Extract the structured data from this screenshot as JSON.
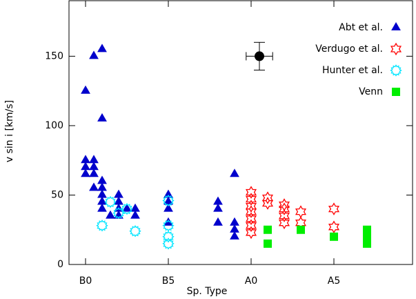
{
  "chart_data": {
    "type": "scatter",
    "xlabel": "Sp. Type",
    "ylabel": "v sin i [km/s]",
    "xlim": [
      -1,
      19.75
    ],
    "ylim": [
      0,
      190
    ],
    "xticks": [
      {
        "value": 0,
        "label": "B0"
      },
      {
        "value": 5,
        "label": "B5"
      },
      {
        "value": 10,
        "label": "A0"
      },
      {
        "value": 15,
        "label": "A5"
      }
    ],
    "yticks": [
      0,
      50,
      100,
      150
    ],
    "legend": "upper right",
    "series": [
      {
        "name": "Abt et al.",
        "color": "#0000cc",
        "marker": "triangle",
        "x": [
          0,
          0,
          0,
          0,
          0.5,
          0.5,
          0.5,
          0.5,
          0.5,
          1,
          1,
          1,
          1,
          1,
          1,
          1,
          1.5,
          2,
          2,
          2,
          2,
          2.5,
          3,
          3,
          5,
          5,
          5,
          5,
          8,
          8,
          8,
          9,
          9,
          9,
          9
        ],
        "values": [
          125,
          75,
          70,
          65,
          150,
          75,
          70,
          65,
          55,
          155,
          105,
          60,
          55,
          50,
          45,
          40,
          35,
          50,
          45,
          40,
          35,
          40,
          40,
          35,
          50,
          45,
          40,
          30,
          45,
          40,
          30,
          65,
          30,
          25,
          20
        ]
      },
      {
        "name": "Verdugo et al.",
        "color": "#ff0000",
        "marker": "star6",
        "x": [
          10,
          10,
          10,
          10,
          10,
          10,
          10,
          11,
          11,
          12,
          12,
          12,
          12,
          13,
          13,
          15,
          15
        ],
        "values": [
          52,
          47,
          42,
          38,
          33,
          28,
          23,
          48,
          44,
          43,
          40,
          35,
          30,
          38,
          30,
          40,
          27
        ]
      },
      {
        "name": "Hunter et al.",
        "color": "#00e5ff",
        "marker": "gear",
        "x": [
          1,
          1.5,
          2,
          2.5,
          3,
          5,
          5,
          5,
          5
        ],
        "values": [
          28,
          45,
          37,
          40,
          24,
          46,
          28,
          20,
          15
        ]
      },
      {
        "name": "Venn",
        "color": "#00ee00",
        "marker": "square",
        "x": [
          11,
          11,
          13,
          15,
          17,
          17,
          17
        ],
        "values": [
          25,
          15,
          25,
          20,
          25,
          20,
          15
        ]
      }
    ],
    "error_point": {
      "x": 10.5,
      "y": 150,
      "xerr": 0.8,
      "yerr": 10,
      "color": "#000000"
    }
  }
}
